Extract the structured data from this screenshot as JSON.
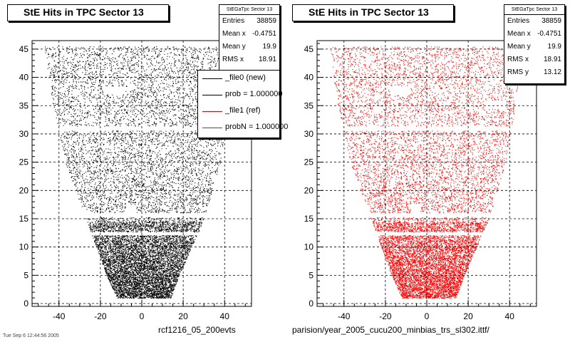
{
  "footer_text": "Tue Sep  6 12:44:56 2005",
  "chart_data": [
    {
      "type": "scatter",
      "title": "StE Hits in TPC Sector 13",
      "xlabel": "rcf1216_05_200evts",
      "ylabel": "",
      "xlim": [
        -53,
        53
      ],
      "ylim": [
        -0.5,
        46.5
      ],
      "xticks": [
        "-40",
        "-20",
        "0",
        "20",
        "40"
      ],
      "yticks": [
        "0",
        "5",
        "10",
        "15",
        "20",
        "25",
        "30",
        "35",
        "40",
        "45"
      ],
      "grid": true,
      "marker_color": "#000000",
      "series": [
        {
          "name": "_file0 (new)",
          "description_points": "dense scatter of TPC hits; envelope (x range per y, in cm)",
          "envelope": [
            [
              1,
              -12,
              14
            ],
            [
              5,
              -17,
              18
            ],
            [
              10,
              -22,
              24
            ],
            [
              15,
              -27,
              30
            ],
            [
              20,
              -32,
              34
            ],
            [
              25,
              -37,
              38
            ],
            [
              30,
              -40,
              40
            ],
            [
              35,
              -43,
              43
            ],
            [
              40,
              -45,
              44
            ],
            [
              45.5,
              -47,
              46
            ]
          ]
        }
      ],
      "stats": {
        "name": "StEGaTpc Sector 13",
        "rows": [
          {
            "label": "Entries",
            "value": "38859"
          },
          {
            "label": "Mean x",
            "value": "-0.4751"
          },
          {
            "label": "Mean y",
            "value": "19.9"
          },
          {
            "label": "RMS x",
            "value": "18.91"
          }
        ]
      },
      "legend": {
        "placement": "top-right",
        "entries": [
          {
            "label": "_file0 (new)",
            "color": "#000000"
          },
          {
            "label": "prob = 1.000000",
            "color": "#000000"
          },
          {
            "label": "_file1 (ref)",
            "color": "#ff0000"
          },
          {
            "label": "probN = 1.000000",
            "color": "#ff0000"
          }
        ]
      }
    },
    {
      "type": "scatter",
      "title": "StE Hits in TPC Sector 13",
      "xlabel": "parision/year_2005_cucu200_minbias_trs_sl302.ittf/",
      "ylabel": "",
      "xlim": [
        -53,
        53
      ],
      "ylim": [
        -0.5,
        46.5
      ],
      "xticks": [
        "-40",
        "-20",
        "0",
        "20",
        "40"
      ],
      "yticks": [
        "0",
        "5",
        "10",
        "15",
        "20",
        "25",
        "30",
        "35",
        "40",
        "45"
      ],
      "grid": true,
      "marker_color": "#ff0000",
      "series": [
        {
          "name": "_file1 (ref)",
          "envelope": [
            [
              1,
              -12,
              14
            ],
            [
              5,
              -17,
              18
            ],
            [
              10,
              -22,
              24
            ],
            [
              15,
              -27,
              30
            ],
            [
              20,
              -32,
              34
            ],
            [
              25,
              -37,
              38
            ],
            [
              30,
              -40,
              40
            ],
            [
              35,
              -43,
              43
            ],
            [
              40,
              -45,
              44
            ],
            [
              45.5,
              -47,
              46
            ]
          ]
        }
      ],
      "stats": {
        "name": "StEGaTpc Sector 13",
        "rows": [
          {
            "label": "Entries",
            "value": "38859"
          },
          {
            "label": "Mean x",
            "value": "-0.4751"
          },
          {
            "label": "Mean y",
            "value": "19.9"
          },
          {
            "label": "RMS x",
            "value": "18.91"
          },
          {
            "label": "RMS y",
            "value": "13.12"
          }
        ]
      }
    }
  ]
}
